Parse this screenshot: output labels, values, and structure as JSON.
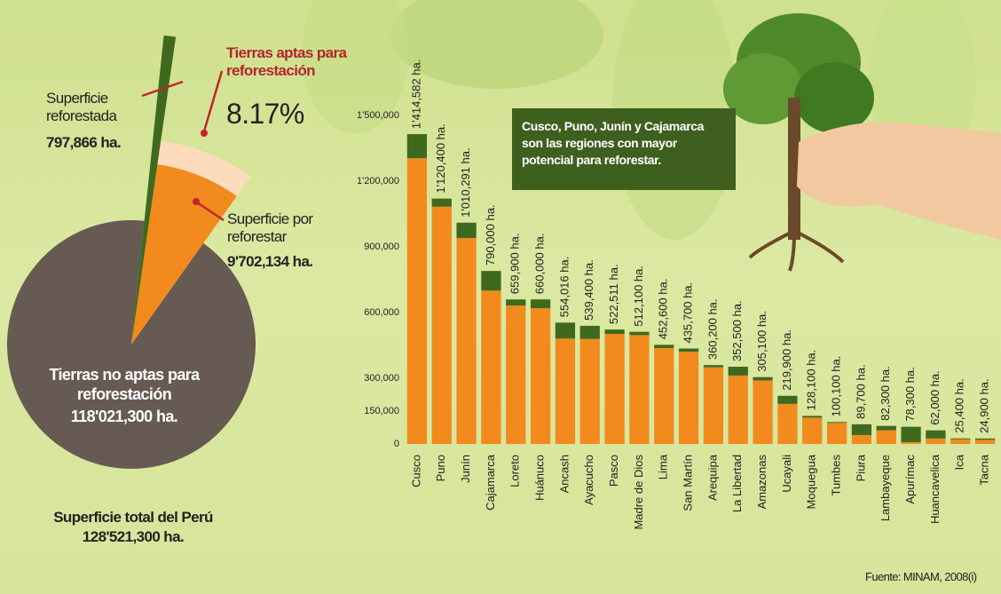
{
  "chart_data": [
    {
      "type": "pie",
      "categories": [
        "Tierras no aptas para reforestación",
        "Superficie por reforestar",
        "Superficie reforestada"
      ],
      "values": [
        118021300,
        9702134,
        797866
      ],
      "value_labels": [
        "118'021,300 ha.",
        "9'702,134 ha.",
        "797,866 ha."
      ],
      "colors": [
        "#665a52",
        "#f28a1e",
        "#3f6a1d"
      ],
      "highlight": {
        "label": "Tierras aptas para reforestación",
        "value": 8.17,
        "value_label": "8.17%",
        "color": "#fcdcbc"
      },
      "total": {
        "label": "Superficie total del Perú",
        "value": 128521300,
        "value_label": "128'521,300 ha."
      }
    },
    {
      "type": "bar",
      "stacked": true,
      "categories": [
        "Cusco",
        "Puno",
        "Junín",
        "Cajamarca",
        "Loreto",
        "Huánuco",
        "Ancash",
        "Ayacucho",
        "Pasco",
        "Madre de Dios",
        "Lima",
        "San Martín",
        "Arequipa",
        "La Libertad",
        "Amazonas",
        "Ucayali",
        "Moquegua",
        "Tumbes",
        "Piura",
        "Lambayeque",
        "Apurímac",
        "Huancavelica",
        "Ica",
        "Tacna"
      ],
      "series": [
        {
          "color": "#f28a1e",
          "values": [
            1304582,
            1083400,
            940291,
            700000,
            631900,
            620000,
            481016,
            479400,
            502511,
            497100,
            437600,
            420700,
            350200,
            312500,
            290100,
            182900,
            120100,
            96100,
            40700,
            62300,
            8300,
            25000,
            21400,
            18900
          ]
        },
        {
          "color": "#3f6a1d",
          "values": [
            110000,
            37000,
            70000,
            90000,
            28000,
            40000,
            73000,
            60000,
            20000,
            15000,
            15000,
            15000,
            10000,
            40000,
            15000,
            37000,
            8000,
            4000,
            49000,
            20000,
            70000,
            37000,
            4000,
            6000
          ]
        }
      ],
      "totals": {
        "values": [
          1414582,
          1120400,
          1010291,
          790000,
          659900,
          660000,
          554016,
          539400,
          522511,
          512100,
          452600,
          435700,
          360200,
          352500,
          305100,
          219900,
          128100,
          100100,
          89700,
          82300,
          78300,
          62000,
          25400,
          24900
        ],
        "value_labels": [
          "1'414,582 ha.",
          "1'120,400 ha.",
          "1'010,291 ha.",
          "790,000 ha.",
          "659,900 ha.",
          "660,000 ha.",
          "554,016 ha.",
          "539,400 ha.",
          "522,511 ha.",
          "512,100 ha.",
          "452,600 ha.",
          "435,700 ha.",
          "360,200 ha.",
          "352,500 ha.",
          "305,100 ha.",
          "219,900 ha.",
          "128,100 ha.",
          "100,100 ha.",
          "89,700 ha.",
          "82,300 ha.",
          "78,300 ha.",
          "62,000 ha.",
          "25,400 ha.",
          "24,900 ha."
        ]
      },
      "ylim": [
        0,
        1500000
      ],
      "yticks": [
        0,
        {
          "value": 150000,
          "label": "150,000"
        },
        {
          "value": 300000,
          "label": "300,000"
        },
        {
          "value": 600000,
          "label": "600,000"
        },
        {
          "value": 900000,
          "label": "900,000"
        },
        {
          "value": 1200000,
          "label": "1'200,000"
        },
        {
          "value": 1500000,
          "label": "1'500,000"
        }
      ],
      "annotation": "Cusco, Puno, Junín y Cajamarca son las regiones con mayor potencial para reforestar."
    }
  ],
  "source": "Fuente: MINAM, 2008(i)"
}
